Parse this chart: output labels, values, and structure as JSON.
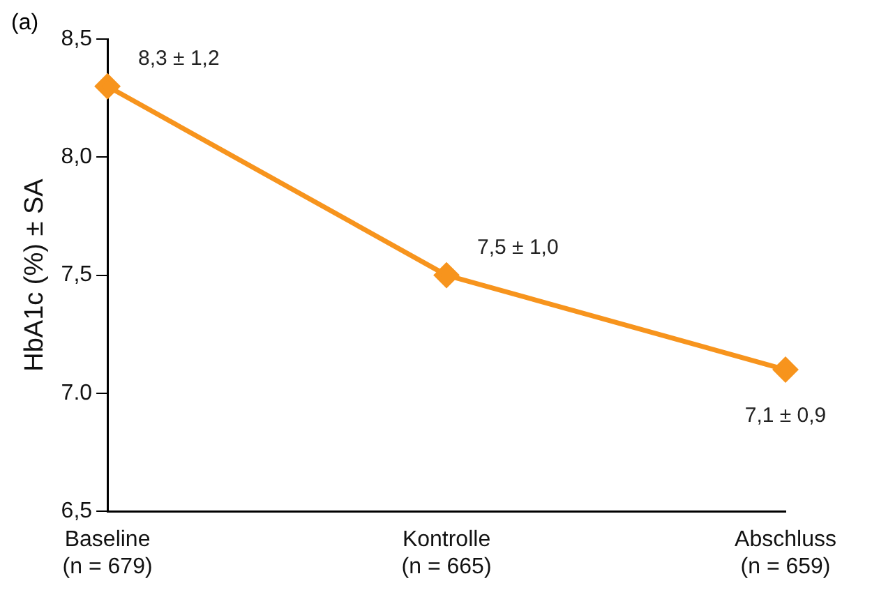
{
  "chart_data": {
    "type": "line",
    "ylabel": "HbA1c (%) ± SA",
    "categories": [
      "Baseline\n(n = 679)",
      "Kontrolle\n(n = 665)",
      "Abschluss\n(n = 659)"
    ],
    "series": [
      {
        "color": "#f7941d",
        "values": [
          8.3,
          7.5,
          7.1
        ],
        "value_labels": [
          "8,3 ± 1,2",
          "7,5 ± 1,0",
          "7,1 ± 0,9"
        ]
      }
    ],
    "ylim": [
      6.5,
      8.5
    ],
    "yticks": [
      {
        "value": 6.5,
        "label": "6,5"
      },
      {
        "value": 7.0,
        "label": "7.0"
      },
      {
        "value": 7.5,
        "label": "7,5"
      },
      {
        "value": 8.0,
        "label": "8,0"
      },
      {
        "value": 8.5,
        "label": "8,5"
      }
    ],
    "annotations": [
      "(a)"
    ],
    "grid": false,
    "legend": false,
    "marker": "diamond",
    "line_style": "solid"
  }
}
